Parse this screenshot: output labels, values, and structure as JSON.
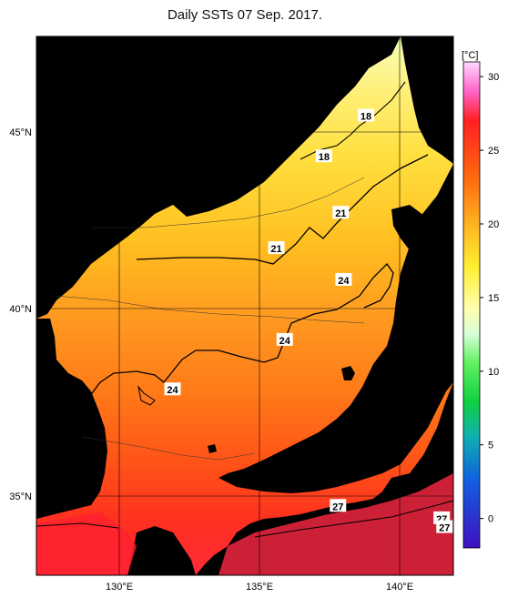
{
  "title": "Daily SSTs 07 Sep. 2017.",
  "colorbar": {
    "unit_label": "[°C]",
    "min": -2,
    "max": 31,
    "ticks": [
      "30",
      "25",
      "20",
      "15",
      "10",
      "5",
      "0"
    ],
    "tick_values": [
      30,
      25,
      20,
      15,
      10,
      5,
      0
    ]
  },
  "axes": {
    "lat_labels": [
      "45°N",
      "40°N",
      "35°N"
    ],
    "lon_labels": [
      "130°E",
      "135°E",
      "140°E"
    ]
  },
  "contour_labels": [
    {
      "text": "18",
      "lon": 138.8,
      "lat": 45.45
    },
    {
      "text": "18",
      "lon": 137.3,
      "lat": 44.3
    },
    {
      "text": "21",
      "lon": 137.9,
      "lat": 42.7
    },
    {
      "text": "21",
      "lon": 135.6,
      "lat": 41.7
    },
    {
      "text": "24",
      "lon": 138.0,
      "lat": 40.8
    },
    {
      "text": "24",
      "lon": 135.9,
      "lat": 39.1
    },
    {
      "text": "24",
      "lon": 131.9,
      "lat": 37.7
    },
    {
      "text": "27",
      "lon": 137.8,
      "lat": 34.4
    },
    {
      "text": "27",
      "lon": 141.5,
      "lat": 34.05
    },
    {
      "text": "27",
      "lon": 141.6,
      "lat": 33.8
    }
  ],
  "colors": {
    "land": "#5a5a5a",
    "sea_warm": "#ff7a1a",
    "sea_hot": "#ff2a2a",
    "sea_cool": "#ffe44a",
    "sea_cold": "#f4ffb0"
  }
}
